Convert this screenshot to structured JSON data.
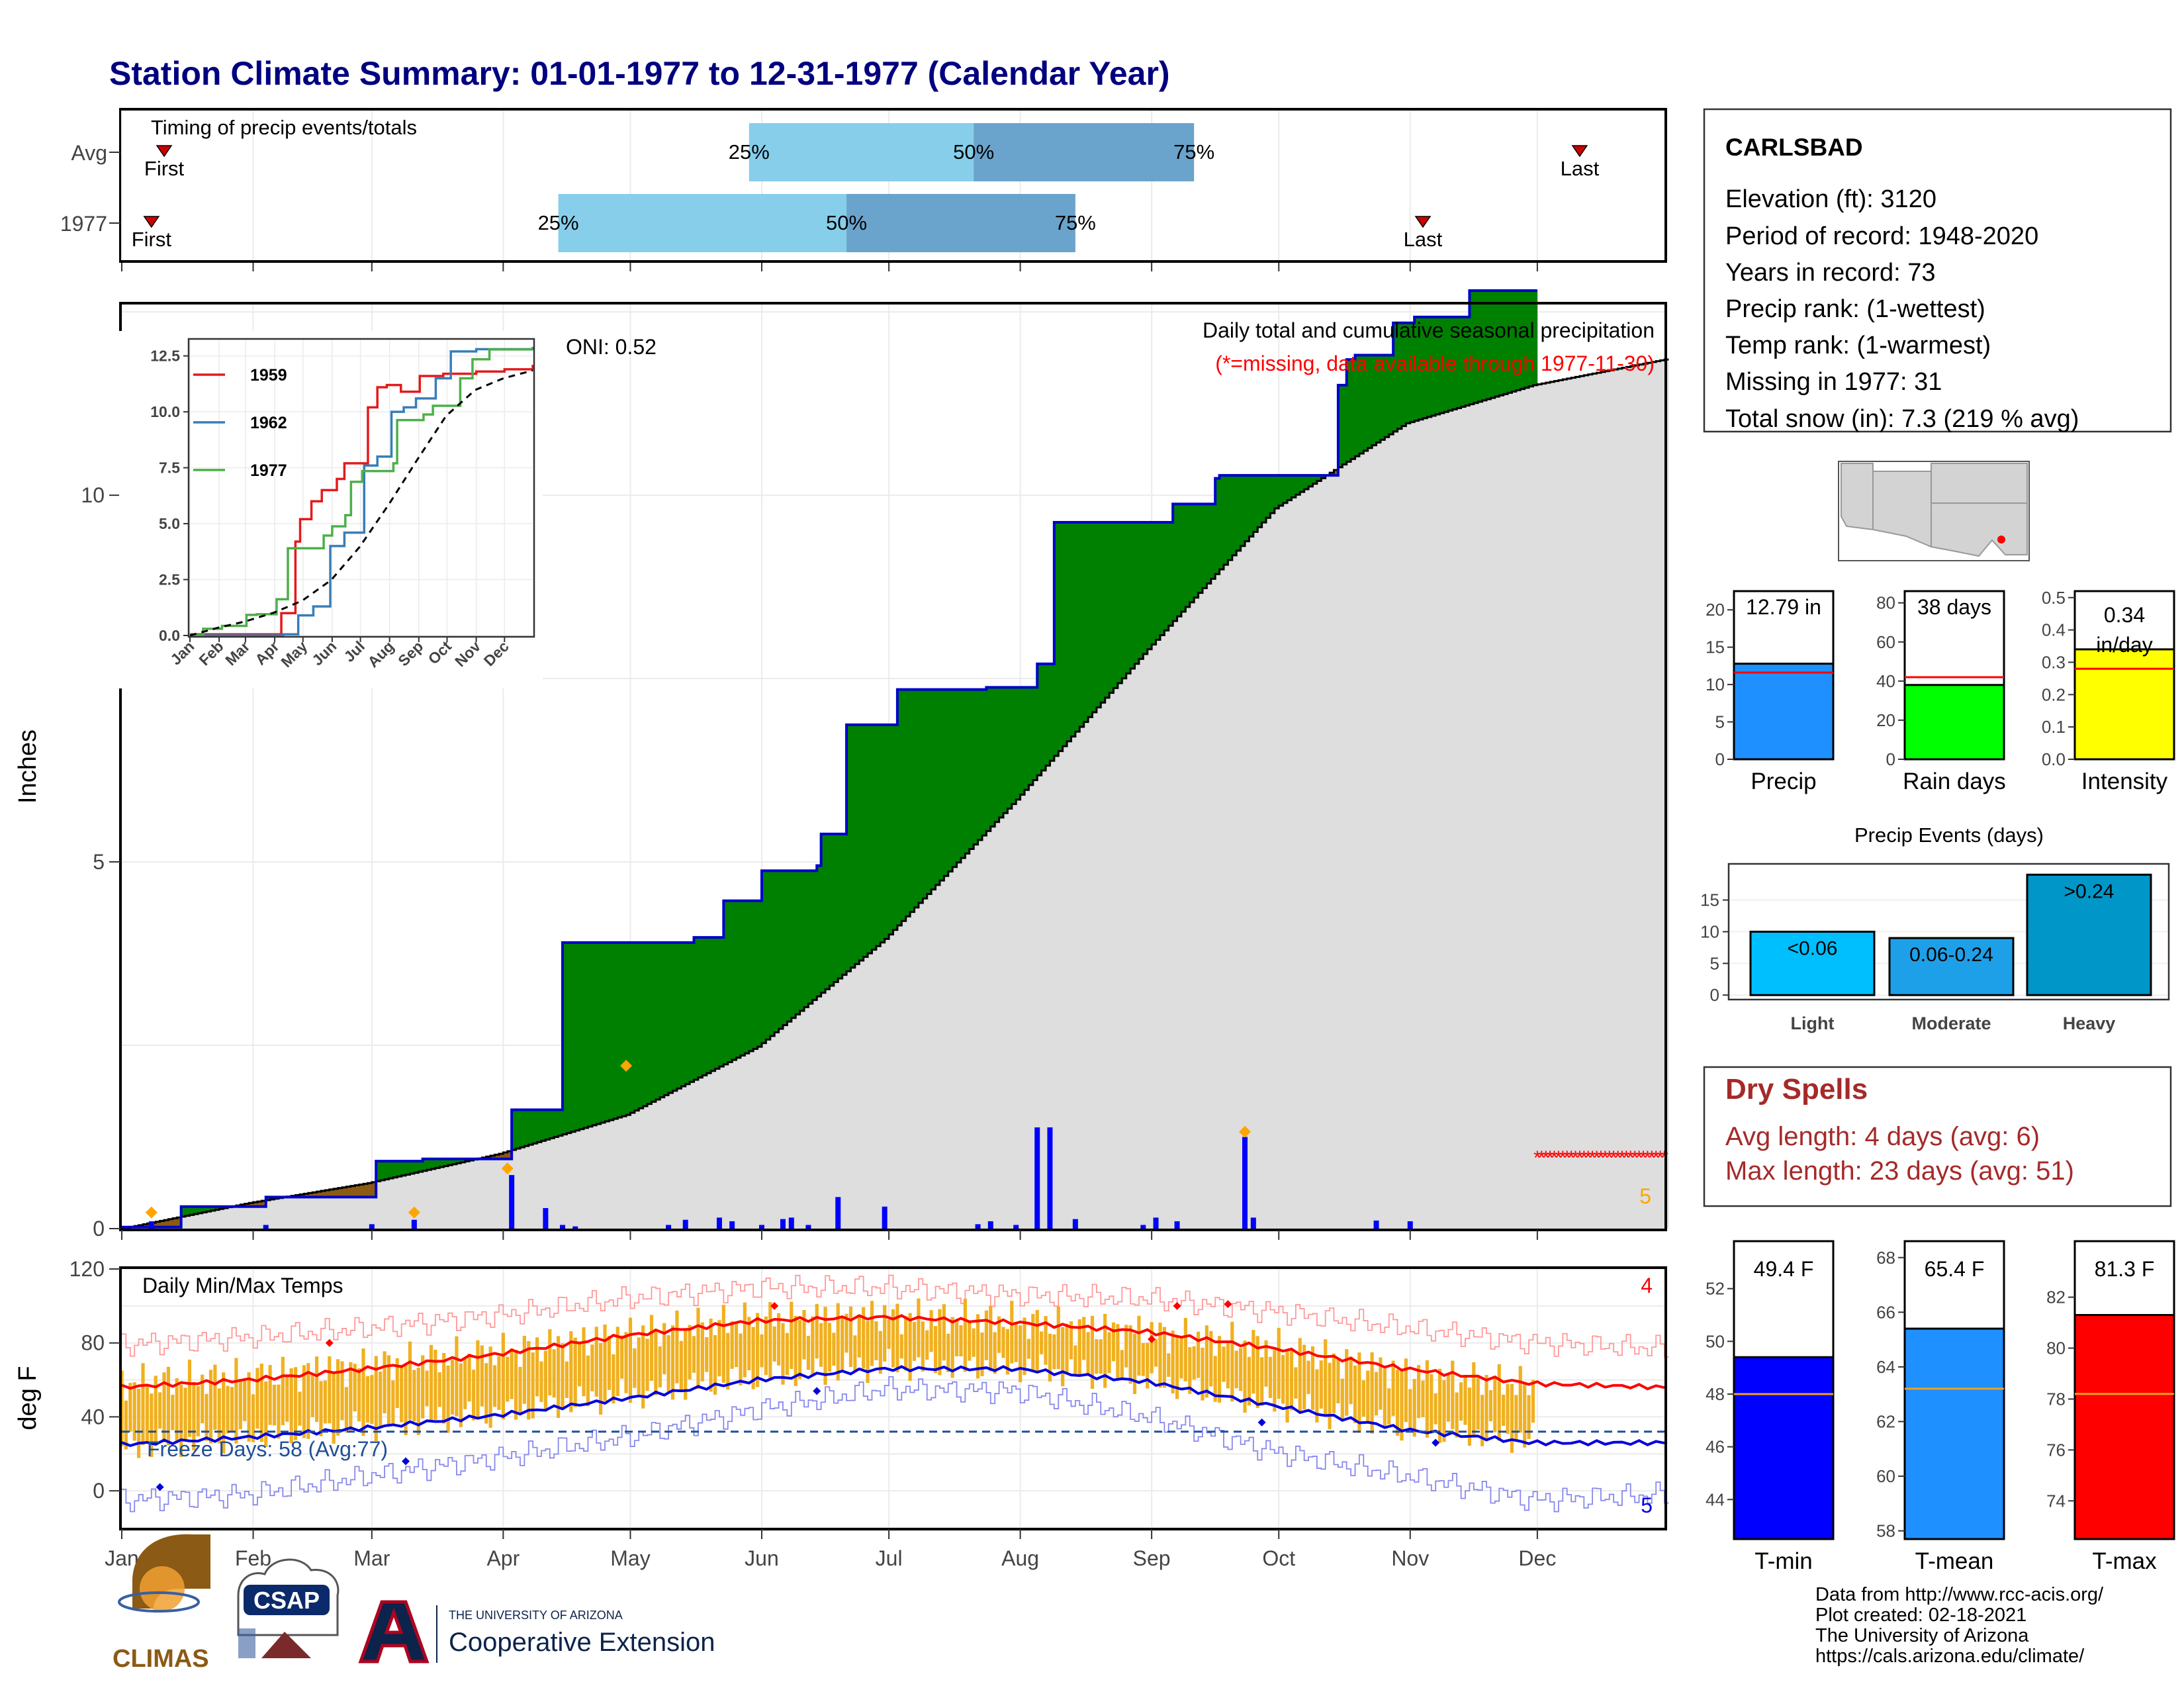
{
  "page_title": "Station Climate Summary: 01-01-1977 to 12-31-1977 (Calendar Year)",
  "months": [
    "Jan",
    "Feb",
    "Mar",
    "Apr",
    "May",
    "Jun",
    "Jul",
    "Aug",
    "Sep",
    "Oct",
    "Nov",
    "Dec"
  ],
  "timing": {
    "title": "Timing of precip events/totals",
    "rows": [
      {
        "label": "Avg",
        "first_doy": 11,
        "p25_doy": 149,
        "p50_doy": 202,
        "p75_doy": 254,
        "last_doy": 345,
        "first_label": "First",
        "last_label": "Last",
        "p25_label": "25%",
        "p50_label": "50%",
        "p75_label": "75%"
      },
      {
        "label": "1977",
        "first_doy": 8,
        "p25_doy": 104,
        "p50_doy": 172,
        "p75_doy": 226,
        "last_doy": 308,
        "first_label": "First",
        "last_label": "Last",
        "p25_label": "25%",
        "p50_label": "50%",
        "p75_label": "75%"
      }
    ],
    "colors": {
      "light": "#87ceeb",
      "dark": "#6aa3cc",
      "marker": "#cc0000"
    }
  },
  "main": {
    "title": "Daily total and cumulative seasonal precipitation",
    "missing_note": "(*=missing, data available through 1977-11-30)",
    "oni": "ONI: 0.52",
    "ylabel": "Inches",
    "yticks": [
      0,
      5,
      10
    ],
    "ylim": [
      0,
      12.6
    ],
    "missing_count": "5",
    "colors": {
      "above": "#008000",
      "below": "#8b5a14",
      "normal_fill": "#dedede",
      "cum_line": "#0000cc",
      "bars": "#0000ff",
      "extreme": "#ffa500",
      "missing": "#ff0000"
    }
  },
  "inset": {
    "yticks": [
      "0.0",
      "2.5",
      "5.0",
      "7.5",
      "10.0",
      "12.5"
    ],
    "ylim": [
      0,
      13.2
    ],
    "legend": [
      {
        "name": "1959",
        "color": "#e41a1c"
      },
      {
        "name": "1962",
        "color": "#377eb8"
      },
      {
        "name": "1977",
        "color": "#4daf4a"
      }
    ],
    "avg_color": "#000000"
  },
  "temps": {
    "title": "Daily Min/Max Temps",
    "ylabel": "deg F",
    "yticks": [
      0,
      40,
      80,
      120
    ],
    "ylim": [
      -20,
      120
    ],
    "freeze_line": 32,
    "freeze_text": "Freeze Days: 58 (Avg:77)",
    "missing_max": "4",
    "missing_min": "5",
    "colors": {
      "range": "#f0b020",
      "avg_max": "#ff0000",
      "avg_min": "#0000dd",
      "rec_max": "#ff9999",
      "rec_min": "#8888ee",
      "freeze": "#1f4e99"
    }
  },
  "station": {
    "name": "CARLSBAD",
    "lines": [
      "Elevation (ft): 3120",
      "Period of record: 1948-2020",
      "Years in record: 73",
      "Precip rank:  (1-wettest)",
      "Temp rank:  (1-warmest)",
      "Missing in 1977: 31",
      "Total snow (in): 7.3 (219 % avg)"
    ]
  },
  "summary_bars": [
    {
      "label": "Precip",
      "value": 12.79,
      "avg": 11.6,
      "text": "12.79 in",
      "ticks": [
        0,
        5,
        10,
        15,
        20
      ],
      "ymax": 22.5,
      "color": "#1e90ff"
    },
    {
      "label": "Rain days",
      "value": 38,
      "avg": 42,
      "text": "38 days",
      "ticks": [
        0,
        20,
        40,
        60,
        80
      ],
      "ymax": 86,
      "color": "#00ff00"
    },
    {
      "label": "Intensity",
      "value": 0.34,
      "avg": 0.28,
      "text": "0.34 in/day",
      "ticks": [
        "0.0",
        "0.1",
        "0.2",
        "0.3",
        "0.4",
        "0.5"
      ],
      "ymax": 0.52,
      "color": "#ffff00"
    }
  ],
  "events": {
    "title": "Precip Events (days)",
    "categories": [
      "Light",
      "Moderate",
      "Heavy"
    ],
    "values": [
      10,
      9,
      19
    ],
    "labels": [
      "<0.06",
      "0.06-0.24",
      ">0.24"
    ],
    "yticks": [
      0,
      5,
      10,
      15
    ],
    "colors": [
      "#00bfff",
      "#1ea0e8",
      "#0096c8"
    ]
  },
  "dry_spells": {
    "title": "Dry Spells",
    "avg_line": "Avg length: 4 days (avg: 6)",
    "max_line": "Max length: 23 days (avg: 51)",
    "color": "#a52a2a"
  },
  "temp_bars": [
    {
      "label": "T-min",
      "value": 49.4,
      "avg": 48.0,
      "text": "49.4 F",
      "ticks": [
        44,
        46,
        48,
        50,
        52
      ],
      "ymin": 42.5,
      "ymax": 53.8,
      "color": "#0000ff"
    },
    {
      "label": "T-mean",
      "value": 65.4,
      "avg": 63.2,
      "text": "65.4 F",
      "ticks": [
        58,
        60,
        62,
        64,
        66,
        68
      ],
      "ymin": 57.7,
      "ymax": 68.6,
      "color": "#1e90ff"
    },
    {
      "label": "T-max",
      "value": 81.3,
      "avg": 78.2,
      "text": "81.3 F",
      "ticks": [
        74,
        76,
        78,
        80,
        82
      ],
      "ymin": 72.5,
      "ymax": 84.2,
      "color": "#ff0000"
    }
  ],
  "credits": [
    "Data from http://www.rcc-acis.org/",
    "Plot created: 02-18-2021",
    "The University of Arizona",
    "https://cals.arizona.edu/climate/"
  ],
  "logos": {
    "climas": "CLIMAS",
    "csap": "CSAP",
    "ua_top": "THE UNIVERSITY OF ARIZONA",
    "ua_main": "Cooperative Extension"
  },
  "chart_data": [
    {
      "type": "area",
      "title": "Daily total and cumulative seasonal precipitation",
      "ylabel": "Inches",
      "ylim": [
        0,
        12.6
      ],
      "series": [
        {
          "name": "1977",
          "x": [
            1,
            15,
            35,
            61,
            72,
            93,
            104,
            105,
            136,
            143,
            152,
            165,
            166,
            172,
            184,
            205,
            217,
            221,
            249,
            259,
            260,
            288,
            290,
            292,
            301,
            306,
            319,
            334
          ],
          "values": [
            0.02,
            0.3,
            0.43,
            0.92,
            0.95,
            1.62,
            1.62,
            3.9,
            3.97,
            4.47,
            4.88,
            4.95,
            5.38,
            6.87,
            7.35,
            7.38,
            7.7,
            9.63,
            9.88,
            10.23,
            10.27,
            11.5,
            11.85,
            11.91,
            12.35,
            12.43,
            12.79,
            12.79
          ]
        }
      ],
      "normal": {
        "x": [
          1,
          31,
          59,
          90,
          120,
          151,
          181,
          212,
          243,
          273,
          304,
          334,
          365
        ],
        "values": [
          0.0,
          0.35,
          0.62,
          1.02,
          1.55,
          2.48,
          3.95,
          5.85,
          7.9,
          9.82,
          10.98,
          11.5,
          11.85
        ]
      },
      "daily_bars": {
        "x": [
          8,
          35,
          60,
          70,
          93,
          101,
          105,
          108,
          130,
          134,
          142,
          145,
          152,
          157,
          159,
          163,
          170,
          181,
          203,
          206,
          212,
          217,
          220,
          226,
          242,
          245,
          250,
          266,
          268,
          297,
          305
        ],
        "values": [
          0.1,
          0.05,
          0.06,
          0.12,
          0.73,
          0.28,
          0.05,
          0.03,
          0.05,
          0.12,
          0.15,
          0.1,
          0.05,
          0.13,
          0.15,
          0.05,
          0.43,
          0.3,
          0.06,
          0.1,
          0.05,
          1.38,
          1.38,
          0.13,
          0.05,
          0.15,
          0.1,
          1.25,
          0.15,
          0.11,
          0.1
        ]
      },
      "extreme_markers": {
        "x": [
          8,
          70,
          92,
          120,
          266
        ],
        "values": [
          0.22,
          0.22,
          0.82,
          2.22,
          1.32
        ]
      }
    },
    {
      "type": "line",
      "title": "",
      "ylim": [
        0,
        13.2
      ],
      "series": [
        {
          "name": "1959",
          "x": [
            1,
            95,
            98,
            113,
            118,
            130,
            141,
            157,
            165,
            190,
            200,
            210,
            225,
            245,
            270,
            305,
            335,
            365
          ],
          "values": [
            0.05,
            0.05,
            1.0,
            4.2,
            5.2,
            6.0,
            6.5,
            7.0,
            7.7,
            10.2,
            11.1,
            11.2,
            10.9,
            11.6,
            11.7,
            11.8,
            11.9,
            12.1
          ]
        },
        {
          "name": "1962",
          "x": [
            1,
            100,
            116,
            132,
            150,
            165,
            186,
            200,
            215,
            228,
            241,
            262,
            278,
            305,
            318,
            340,
            365
          ],
          "values": [
            0.0,
            0.05,
            0.9,
            1.3,
            4.0,
            4.6,
            7.6,
            8.0,
            10.0,
            10.2,
            10.6,
            11.5,
            12.7,
            12.8,
            12.8,
            12.8,
            12.9
          ]
        },
        {
          "name": "1977",
          "x": [
            1,
            15,
            35,
            61,
            72,
            93,
            104,
            105,
            143,
            152,
            166,
            172,
            184,
            217,
            221,
            249,
            259,
            288,
            301,
            319,
            365
          ],
          "values": [
            0.02,
            0.3,
            0.43,
            0.92,
            0.95,
            1.62,
            1.62,
            3.9,
            4.47,
            4.88,
            5.38,
            6.87,
            7.35,
            7.7,
            9.63,
            9.88,
            10.27,
            11.5,
            12.35,
            12.79,
            12.79
          ]
        },
        {
          "name": "Average",
          "x": [
            1,
            31,
            59,
            90,
            120,
            151,
            181,
            212,
            243,
            273,
            304,
            334,
            365
          ],
          "values": [
            0.0,
            0.35,
            0.62,
            1.02,
            1.55,
            2.48,
            3.95,
            5.85,
            7.9,
            9.82,
            10.98,
            11.5,
            11.85
          ]
        }
      ]
    },
    {
      "type": "line",
      "title": "Daily Min/Max Temps",
      "ylabel": "deg F",
      "ylim": [
        -20,
        120
      ],
      "series": [
        {
          "name": "avg_max",
          "x": [
            1,
            31,
            59,
            90,
            120,
            151,
            181,
            212,
            243,
            273,
            304,
            334,
            365
          ],
          "values": [
            56,
            60,
            66,
            74,
            84,
            92,
            94,
            91,
            86,
            77,
            66,
            58,
            56
          ]
        },
        {
          "name": "avg_min",
          "x": [
            1,
            31,
            59,
            90,
            120,
            151,
            181,
            212,
            243,
            273,
            304,
            334,
            365
          ],
          "values": [
            25,
            29,
            34,
            41,
            50,
            60,
            66,
            66,
            59,
            46,
            33,
            26,
            26
          ]
        },
        {
          "name": "rec_max",
          "x": [
            1,
            31,
            59,
            90,
            120,
            151,
            181,
            212,
            243,
            273,
            304,
            334,
            365
          ],
          "values": [
            79,
            83,
            88,
            95,
            104,
            110,
            110,
            106,
            104,
            97,
            88,
            80,
            77
          ]
        },
        {
          "name": "rec_min",
          "x": [
            1,
            31,
            59,
            90,
            120,
            151,
            181,
            212,
            243,
            273,
            304,
            334,
            365
          ],
          "values": [
            -5,
            -2,
            8,
            18,
            29,
            44,
            55,
            54,
            40,
            21,
            8,
            -5,
            -2
          ]
        },
        {
          "name": "1977_max",
          "x": [
            1,
            31,
            59,
            90,
            120,
            151,
            181,
            212,
            243,
            273,
            304,
            334
          ],
          "values": [
            58,
            62,
            68,
            75,
            85,
            93,
            95,
            92,
            86,
            78,
            64,
            57
          ]
        },
        {
          "name": "1977_min",
          "x": [
            1,
            31,
            59,
            90,
            120,
            151,
            181,
            212,
            243,
            273,
            304,
            334
          ],
          "values": [
            24,
            30,
            35,
            42,
            52,
            62,
            68,
            67,
            60,
            47,
            34,
            28
          ]
        }
      ],
      "record_markers": {
        "x": [
          10,
          50,
          68,
          165,
          270,
          311,
          244,
          250,
          155,
          262
        ],
        "values": [
          2,
          80,
          16,
          54,
          37,
          26,
          82,
          100,
          100,
          101
        ]
      }
    }
  ]
}
